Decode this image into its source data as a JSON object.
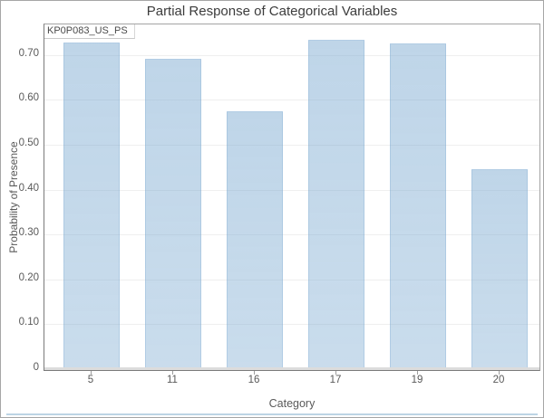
{
  "window": {
    "title": "Partial Response of Categorical Variables"
  },
  "chart_data": {
    "type": "bar",
    "title": "Partial Response of Categorical Variables",
    "variable_label": "KP0P083_US_PS",
    "xlabel": "Category",
    "ylabel": "Probability of Presence",
    "categories": [
      "5",
      "11",
      "16",
      "17",
      "19",
      "20"
    ],
    "values": [
      0.725,
      0.69,
      0.573,
      0.732,
      0.724,
      0.443
    ],
    "ylim": [
      0,
      0.768
    ],
    "yticks": [
      0,
      0.1,
      0.2,
      0.3,
      0.4,
      0.5,
      0.6,
      0.7
    ],
    "ytick_labels": [
      "0",
      "0.10",
      "0.20",
      "0.30",
      "0.40",
      "0.50",
      "0.60",
      "0.70"
    ],
    "grid": "horizontal",
    "legend": "none",
    "colors": {
      "bar_fill": "#C3DBEB",
      "bar_border": "#B2CFE4",
      "gridline": "#EFEFEF",
      "axis_text": "#595959",
      "title_text": "#3C3C3C",
      "plot_border": "#7B7B7B",
      "bottom_accent": "#BCD4E4"
    }
  }
}
